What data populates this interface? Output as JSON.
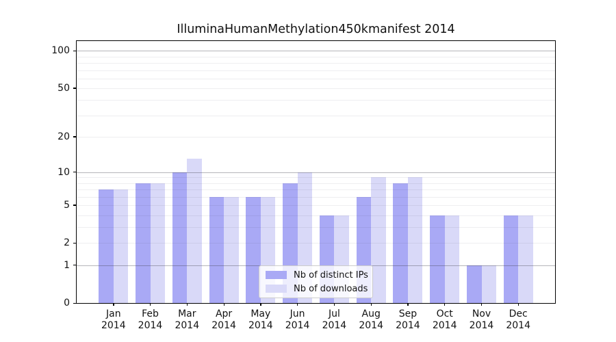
{
  "title": "IlluminaHumanMethylation450kmanifest 2014",
  "chart_data": {
    "type": "bar",
    "title": "IlluminaHumanMethylation450kmanifest 2014",
    "categories": [
      "Jan",
      "Feb",
      "Mar",
      "Apr",
      "May",
      "Jun",
      "Jul",
      "Aug",
      "Sep",
      "Oct",
      "Nov",
      "Dec"
    ],
    "year_label": "2014",
    "series": [
      {
        "name": "Nb of distinct IPs",
        "color": "#a9a9f5",
        "values": [
          7,
          8,
          10,
          6,
          6,
          8,
          4,
          6,
          8,
          4,
          1,
          4
        ]
      },
      {
        "name": "Nb of downloads",
        "color": "#d9d9f8",
        "values": [
          7,
          8,
          13,
          6,
          6,
          10,
          4,
          9,
          9,
          4,
          1,
          4
        ]
      }
    ],
    "xlabel": "",
    "ylabel": "",
    "y_scale": "log1p",
    "y_axis": {
      "ticks": [
        100,
        50,
        20,
        10,
        5,
        2,
        1,
        0
      ],
      "max": 120,
      "min": 0
    },
    "gridlines": {
      "major": [
        1,
        10,
        100
      ],
      "minor": [
        2,
        3,
        4,
        5,
        6,
        7,
        8,
        9,
        20,
        30,
        40,
        50,
        60,
        70,
        80,
        90
      ],
      "grid_on": true
    },
    "legend": {
      "position": "bottom-center",
      "entries": [
        "Nb of distinct IPs",
        "Nb of downloads"
      ]
    },
    "colors": {
      "bar_dark": "#a9a9f5",
      "bar_light": "#d9d9f8",
      "axis": "#000000",
      "major_grid": "#b3b3b6",
      "minor_grid": "#ececef",
      "background": "#ffffff"
    }
  }
}
